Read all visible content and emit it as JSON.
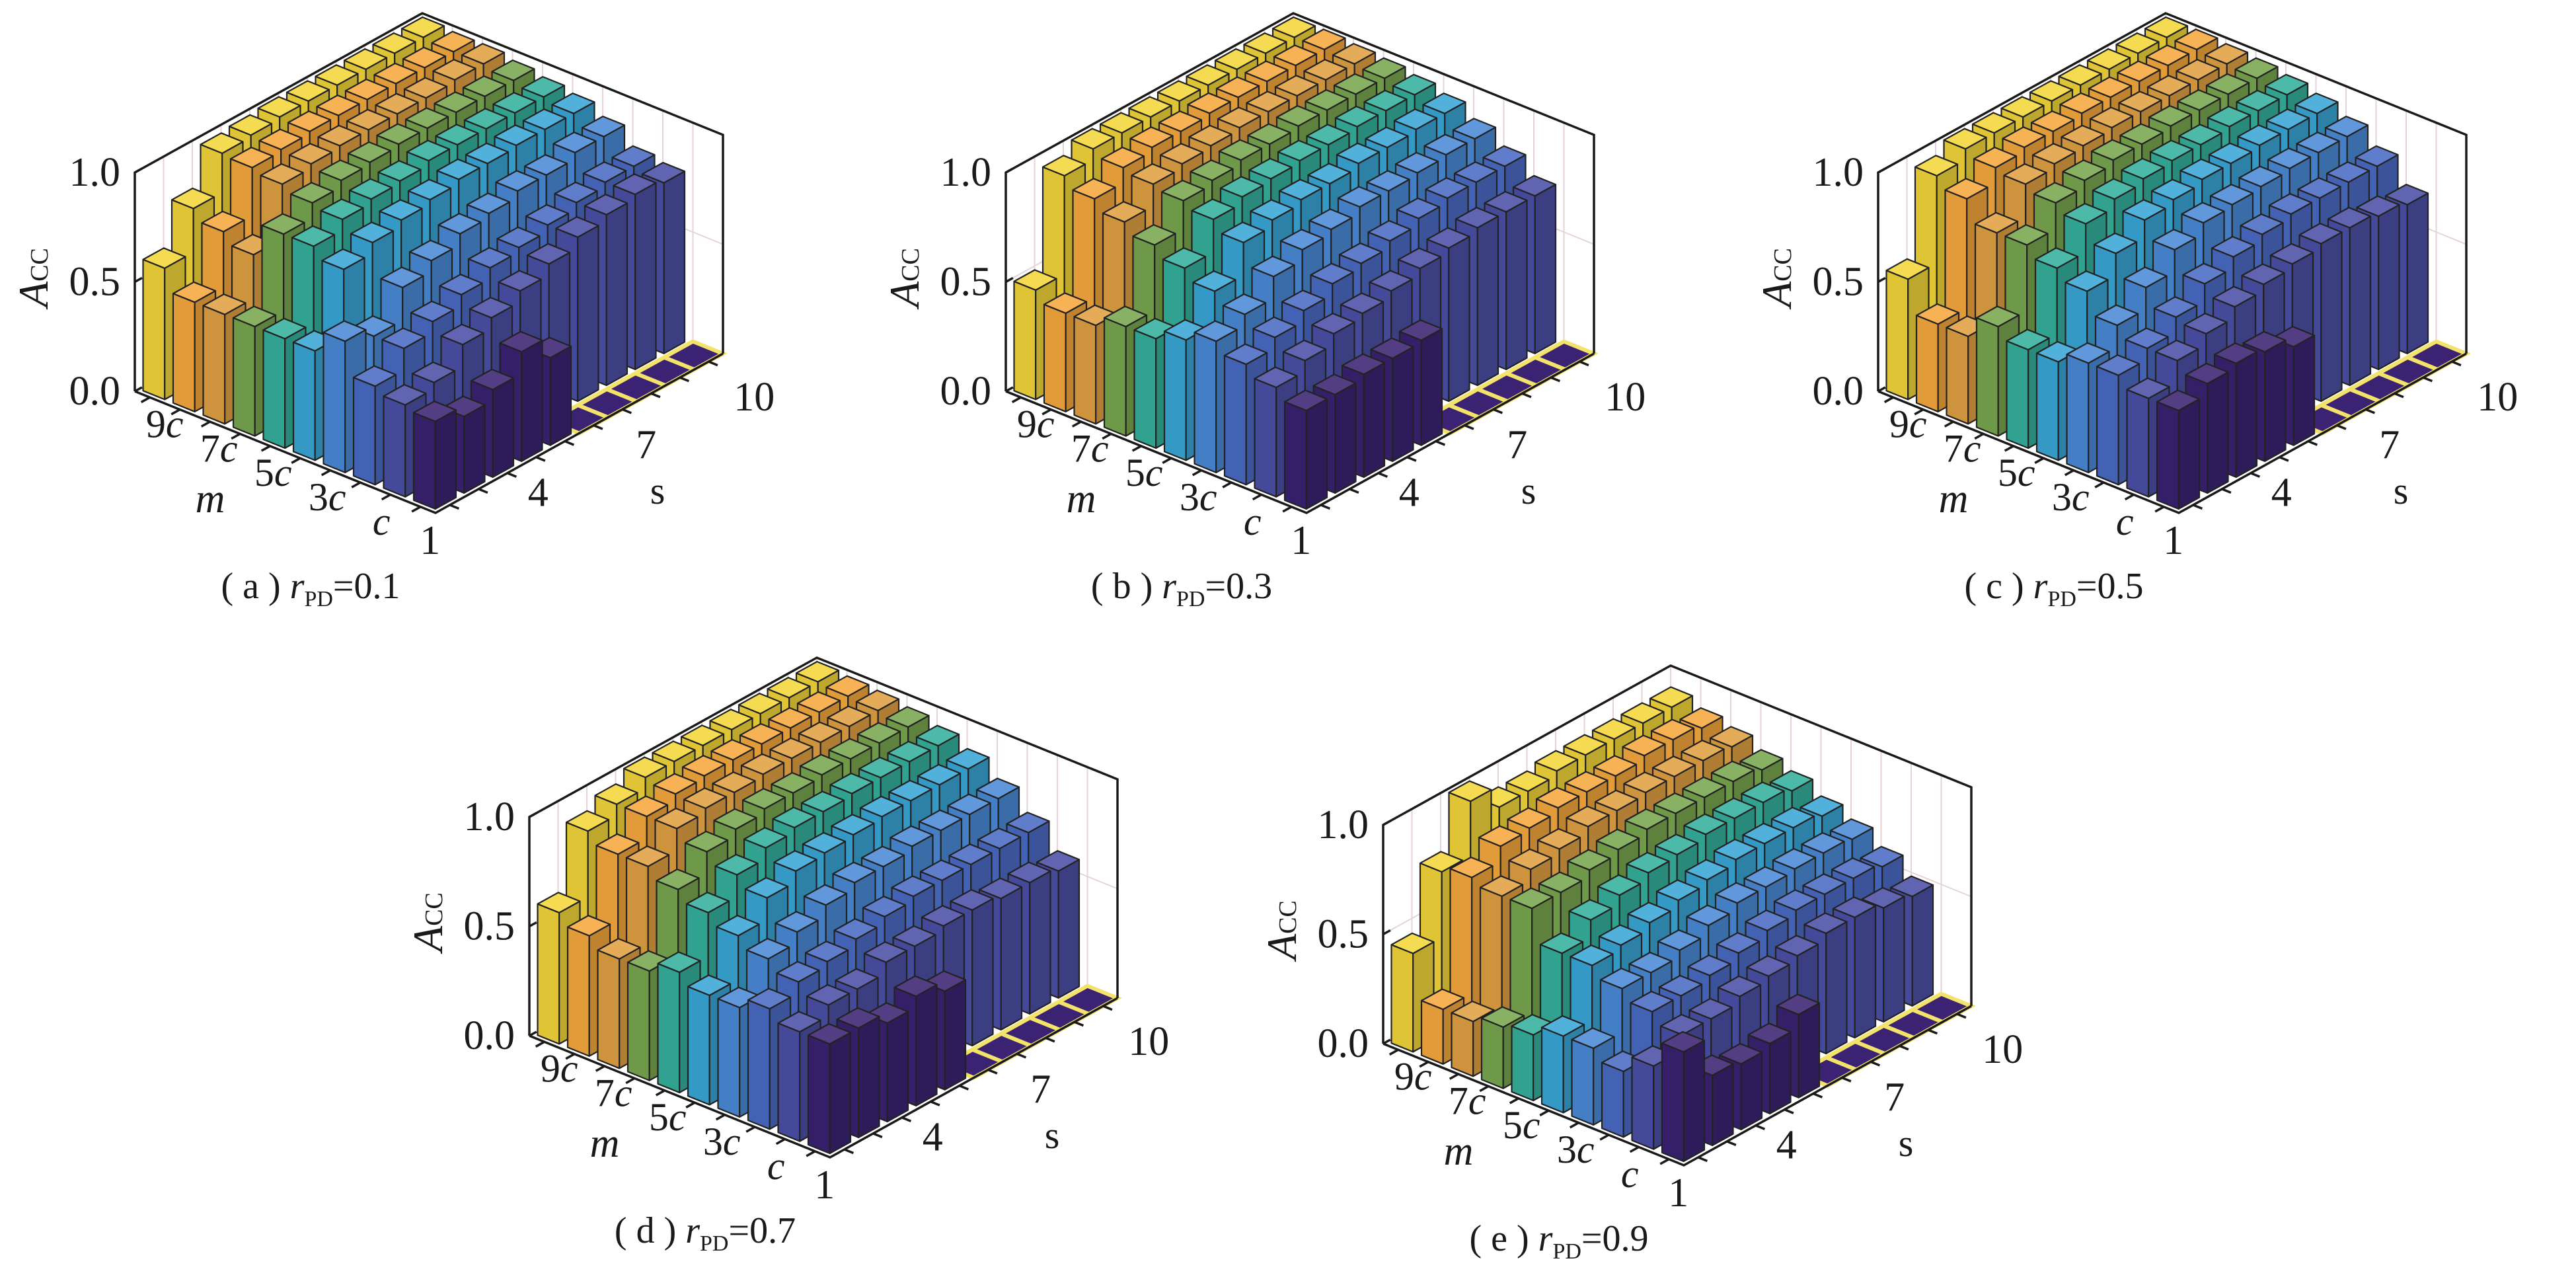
{
  "colors": {
    "rows": [
      "#3b2272",
      "#4b4fa6",
      "#4a6bc4",
      "#4a8ad6",
      "#3aa6d6",
      "#35b09c",
      "#78a64e",
      "#e0a042",
      "#f5a83e",
      "#f2d63a"
    ],
    "zero_tile_edge": "#f3e36a",
    "grid": "#e4d3d8",
    "axis": "#1a1a1a"
  },
  "chart_data": [
    {
      "type": "bar3d",
      "caption": {
        "label": "( a )",
        "var": "r",
        "sub": "PD",
        "value": "=0.1"
      },
      "zlabel": {
        "main": "A",
        "sub": "CC"
      },
      "xlabel": "m",
      "ylabel": "s",
      "m_categories": [
        "c",
        "2c",
        "3c",
        "4c",
        "5c",
        "6c",
        "7c",
        "8c",
        "9c",
        "10c"
      ],
      "m_ticks": [
        "c",
        "3c",
        "5c",
        "7c",
        "9c"
      ],
      "s_categories": [
        1,
        2,
        3,
        4,
        5,
        6,
        7,
        8,
        9,
        10
      ],
      "s_ticks": [
        "1",
        "4",
        "7",
        "10"
      ],
      "z_ticks": [
        "0.0",
        "0.5",
        "1.0"
      ],
      "zlim": [
        0,
        1
      ],
      "values": [
        [
          0.4,
          0.35,
          0.4,
          0.5,
          0.4,
          0,
          0,
          0,
          0,
          0
        ],
        [
          0.42,
          0.45,
          0.55,
          0.6,
          0.65,
          0.7,
          0.75,
          0.78,
          0.8,
          0.78
        ],
        [
          0.45,
          0.55,
          0.6,
          0.65,
          0.7,
          0.72,
          0.75,
          0.78,
          0.8,
          0.8
        ],
        [
          0.6,
          0.55,
          0.7,
          0.75,
          0.8,
          0.82,
          0.85,
          0.85,
          0.88,
          0.88
        ],
        [
          0.5,
          0.8,
          0.85,
          0.88,
          0.9,
          0.92,
          0.92,
          0.93,
          0.93,
          0.93
        ],
        [
          0.5,
          0.85,
          0.9,
          0.92,
          0.93,
          0.95,
          0.95,
          0.95,
          0.95,
          0.95
        ],
        [
          0.5,
          0.85,
          0.92,
          0.95,
          0.96,
          0.97,
          0.97,
          0.97,
          0.97,
          0.97
        ],
        [
          0.5,
          0.7,
          0.95,
          0.97,
          0.98,
          0.98,
          0.98,
          0.98,
          0.99,
          0.99
        ],
        [
          0.5,
          0.75,
          0.97,
          0.98,
          0.99,
          0.99,
          0.99,
          0.99,
          0.99,
          0.99
        ],
        [
          0.6,
          0.8,
          0.98,
          0.99,
          1.0,
          1.0,
          1.0,
          1.0,
          1.0,
          1.0
        ]
      ]
    },
    {
      "type": "bar3d",
      "caption": {
        "label": "( b )",
        "var": "r",
        "sub": "PD",
        "value": "=0.3"
      },
      "zlabel": {
        "main": "A",
        "sub": "CC"
      },
      "xlabel": "m",
      "ylabel": "s",
      "m_categories": [
        "c",
        "2c",
        "3c",
        "4c",
        "5c",
        "6c",
        "7c",
        "8c",
        "9c",
        "10c"
      ],
      "m_ticks": [
        "c",
        "3c",
        "5c",
        "7c",
        "9c"
      ],
      "s_categories": [
        1,
        2,
        3,
        4,
        5,
        6,
        7,
        8,
        9,
        10
      ],
      "s_ticks": [
        "1",
        "4",
        "7",
        "10"
      ],
      "z_ticks": [
        "0.0",
        "0.5",
        "1.0"
      ],
      "zlim": [
        0,
        1
      ],
      "values": [
        [
          0.45,
          0.45,
          0.47,
          0.47,
          0.48,
          0,
          0,
          0,
          0,
          0
        ],
        [
          0.5,
          0.55,
          0.6,
          0.62,
          0.65,
          0.68,
          0.7,
          0.72,
          0.72,
          0.72
        ],
        [
          0.55,
          0.6,
          0.65,
          0.7,
          0.72,
          0.75,
          0.78,
          0.8,
          0.8,
          0.8
        ],
        [
          0.6,
          0.65,
          0.75,
          0.8,
          0.82,
          0.85,
          0.85,
          0.86,
          0.87,
          0.87
        ],
        [
          0.55,
          0.7,
          0.85,
          0.88,
          0.9,
          0.9,
          0.92,
          0.92,
          0.93,
          0.93
        ],
        [
          0.5,
          0.75,
          0.9,
          0.93,
          0.94,
          0.95,
          0.95,
          0.96,
          0.96,
          0.96
        ],
        [
          0.5,
          0.8,
          0.93,
          0.95,
          0.97,
          0.97,
          0.98,
          0.98,
          0.98,
          0.98
        ],
        [
          0.45,
          0.85,
          0.95,
          0.97,
          0.98,
          0.99,
          0.99,
          0.99,
          0.99,
          0.99
        ],
        [
          0.45,
          0.9,
          0.97,
          0.99,
          0.99,
          1.0,
          1.0,
          1.0,
          1.0,
          1.0
        ],
        [
          0.5,
          0.95,
          1.0,
          1.0,
          1.0,
          1.0,
          1.0,
          1.0,
          1.0,
          1.0
        ]
      ]
    },
    {
      "type": "bar3d",
      "caption": {
        "label": "( c )",
        "var": "r",
        "sub": "PD",
        "value": "=0.5"
      },
      "zlabel": {
        "main": "A",
        "sub": "CC"
      },
      "xlabel": "m",
      "ylabel": "s",
      "m_categories": [
        "c",
        "2c",
        "3c",
        "4c",
        "5c",
        "6c",
        "7c",
        "8c",
        "9c",
        "10c"
      ],
      "m_ticks": [
        "c",
        "3c",
        "5c",
        "7c",
        "9c"
      ],
      "s_categories": [
        1,
        2,
        3,
        4,
        5,
        6,
        7,
        8,
        9,
        10
      ],
      "s_ticks": [
        "1",
        "4",
        "7",
        "10"
      ],
      "z_ticks": [
        "0.0",
        "0.5",
        "1.0"
      ],
      "zlim": [
        0,
        1
      ],
      "values": [
        [
          0.45,
          0.5,
          0.52,
          0.5,
          0.45,
          0,
          0,
          0,
          0,
          0
        ],
        [
          0.45,
          0.55,
          0.6,
          0.65,
          0.68,
          0.7,
          0.72,
          0.72,
          0.7,
          0.68
        ],
        [
          0.5,
          0.55,
          0.62,
          0.7,
          0.75,
          0.78,
          0.8,
          0.8,
          0.8,
          0.8
        ],
        [
          0.5,
          0.6,
          0.7,
          0.8,
          0.85,
          0.86,
          0.87,
          0.88,
          0.88,
          0.88
        ],
        [
          0.45,
          0.7,
          0.8,
          0.88,
          0.9,
          0.92,
          0.92,
          0.93,
          0.93,
          0.93
        ],
        [
          0.45,
          0.75,
          0.88,
          0.92,
          0.94,
          0.95,
          0.95,
          0.96,
          0.96,
          0.96
        ],
        [
          0.5,
          0.8,
          0.92,
          0.95,
          0.97,
          0.97,
          0.98,
          0.98,
          0.98,
          0.98
        ],
        [
          0.4,
          0.8,
          0.95,
          0.97,
          0.98,
          0.99,
          0.99,
          0.99,
          0.99,
          0.99
        ],
        [
          0.4,
          0.9,
          0.97,
          0.99,
          0.99,
          1.0,
          1.0,
          1.0,
          1.0,
          1.0
        ],
        [
          0.55,
          0.95,
          1.0,
          1.0,
          1.0,
          1.0,
          1.0,
          1.0,
          1.0,
          1.0
        ]
      ]
    },
    {
      "type": "bar3d",
      "caption": {
        "label": "( d )",
        "var": "r",
        "sub": "PD",
        "value": "=0.7"
      },
      "zlabel": {
        "main": "A",
        "sub": "CC"
      },
      "xlabel": "m",
      "ylabel": "s",
      "m_categories": [
        "c",
        "2c",
        "3c",
        "4c",
        "5c",
        "6c",
        "7c",
        "8c",
        "9c",
        "10c"
      ],
      "m_ticks": [
        "c",
        "3c",
        "5c",
        "7c",
        "9c"
      ],
      "s_categories": [
        1,
        2,
        3,
        4,
        5,
        6,
        7,
        8,
        9,
        10
      ],
      "s_ticks": [
        "1",
        "4",
        "7",
        "10"
      ],
      "z_ticks": [
        "0.0",
        "0.5",
        "1.0"
      ],
      "zlim": [
        0,
        1
      ],
      "values": [
        [
          0.5,
          0.5,
          0.45,
          0.5,
          0.45,
          0,
          0,
          0,
          0,
          0
        ],
        [
          0.5,
          0.55,
          0.55,
          0.6,
          0.6,
          0.62,
          0.62,
          0.6,
          0.6,
          0.58
        ],
        [
          0.55,
          0.6,
          0.62,
          0.65,
          0.68,
          0.7,
          0.7,
          0.7,
          0.7,
          0.7
        ],
        [
          0.5,
          0.65,
          0.7,
          0.75,
          0.78,
          0.78,
          0.8,
          0.8,
          0.8,
          0.8
        ],
        [
          0.5,
          0.7,
          0.8,
          0.85,
          0.86,
          0.87,
          0.88,
          0.88,
          0.88,
          0.88
        ],
        [
          0.55,
          0.75,
          0.85,
          0.9,
          0.92,
          0.92,
          0.93,
          0.93,
          0.93,
          0.93
        ],
        [
          0.5,
          0.8,
          0.9,
          0.93,
          0.95,
          0.95,
          0.96,
          0.96,
          0.96,
          0.96
        ],
        [
          0.5,
          0.85,
          0.95,
          0.97,
          0.97,
          0.98,
          0.98,
          0.98,
          0.98,
          0.98
        ],
        [
          0.55,
          0.85,
          0.95,
          0.98,
          0.99,
          0.99,
          0.99,
          0.99,
          0.99,
          0.99
        ],
        [
          0.6,
          0.9,
          0.95,
          1.0,
          1.0,
          1.0,
          1.0,
          1.0,
          1.0,
          1.0
        ]
      ]
    },
    {
      "type": "bar3d",
      "caption": {
        "label": "( e )",
        "var": "r",
        "sub": "PD",
        "value": "=0.9"
      },
      "zlabel": {
        "main": "A",
        "sub": "CC"
      },
      "xlabel": "m",
      "ylabel": "s",
      "m_categories": [
        "c",
        "2c",
        "3c",
        "4c",
        "5c",
        "6c",
        "7c",
        "8c",
        "9c",
        "10c"
      ],
      "m_ticks": [
        "c",
        "3c",
        "5c",
        "7c",
        "9c"
      ],
      "s_categories": [
        1,
        2,
        3,
        4,
        5,
        6,
        7,
        8,
        9,
        10
      ],
      "s_ticks": [
        "1",
        "4",
        "7",
        "10"
      ],
      "z_ticks": [
        "0.0",
        "0.5",
        "1.0"
      ],
      "zlim": [
        0,
        1
      ],
      "values": [
        [
          0.5,
          0.32,
          0.3,
          0.32,
          0.38,
          0,
          0,
          0,
          0,
          0
        ],
        [
          0.38,
          0.45,
          0.45,
          0.48,
          0.5,
          0.52,
          0.55,
          0.55,
          0.52,
          0.5
        ],
        [
          0.3,
          0.5,
          0.5,
          0.52,
          0.55,
          0.58,
          0.6,
          0.6,
          0.6,
          0.58
        ],
        [
          0.35,
          0.55,
          0.55,
          0.58,
          0.62,
          0.65,
          0.65,
          0.66,
          0.66,
          0.65
        ],
        [
          0.35,
          0.6,
          0.62,
          0.65,
          0.68,
          0.7,
          0.72,
          0.72,
          0.72,
          0.7
        ],
        [
          0.3,
          0.6,
          0.68,
          0.72,
          0.75,
          0.76,
          0.78,
          0.78,
          0.78,
          0.76
        ],
        [
          0.28,
          0.75,
          0.75,
          0.78,
          0.8,
          0.82,
          0.82,
          0.82,
          0.82,
          0.8
        ],
        [
          0.25,
          0.75,
          0.8,
          0.82,
          0.85,
          0.85,
          0.86,
          0.86,
          0.86,
          0.85
        ],
        [
          0.25,
          0.78,
          0.85,
          0.86,
          0.88,
          0.88,
          0.88,
          0.9,
          0.9,
          0.88
        ],
        [
          0.45,
          0.75,
          1.0,
          0.9,
          0.9,
          0.92,
          0.92,
          0.92,
          0.92,
          0.92
        ]
      ]
    }
  ]
}
